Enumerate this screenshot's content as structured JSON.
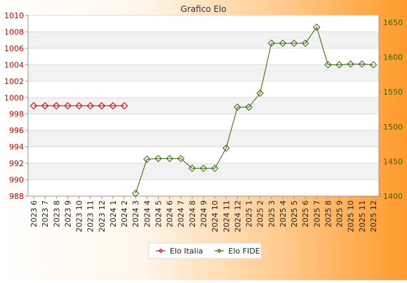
{
  "chart_data": {
    "type": "line",
    "title": "Grafico Elo",
    "categories": [
      "2023 6",
      "2023 7",
      "2023 8",
      "2023 9",
      "2023 10",
      "2023 11",
      "2023 12",
      "2024 1",
      "2024 2",
      "2024 3",
      "2024 4",
      "2024 5",
      "2024 6",
      "2024 7",
      "2024 8",
      "2024 9",
      "2024 10",
      "2024 11",
      "2024 12",
      "2025 1",
      "2025 2",
      "2025 3",
      "2025 4",
      "2025 5",
      "2025 6",
      "2025 7",
      "2025 8",
      "2025 9",
      "2025 10",
      "2025 11",
      "2025 12"
    ],
    "y_left": {
      "ylim": [
        988,
        1010
      ],
      "ticks": [
        988,
        990,
        992,
        994,
        996,
        998,
        1000,
        1002,
        1004,
        1006,
        1008,
        1010
      ],
      "color": "#cc0000"
    },
    "y_right": {
      "ylim": [
        1400,
        1660
      ],
      "ticks": [
        1400,
        1450,
        1500,
        1550,
        1600,
        1650
      ],
      "color": "#336600"
    },
    "grid": true,
    "legend_position": "bottom",
    "series": [
      {
        "name": "Elo Italia",
        "axis": "left",
        "color": "#cc0000",
        "values": [
          999,
          999,
          999,
          999,
          999,
          999,
          999,
          999,
          999,
          null,
          null,
          null,
          null,
          null,
          null,
          null,
          null,
          null,
          null,
          null,
          null,
          null,
          null,
          null,
          null,
          null,
          null,
          null,
          null,
          null,
          null
        ]
      },
      {
        "name": "Elo FIDE",
        "axis": "right",
        "color": "#336600",
        "values": [
          null,
          null,
          null,
          null,
          null,
          null,
          null,
          null,
          null,
          1404,
          1453,
          1454,
          1454,
          1454,
          1440,
          1440,
          1440,
          1469,
          1528,
          1528,
          1548,
          1620,
          1620,
          1620,
          1620,
          1643,
          1589,
          1589,
          1590,
          1590,
          1589
        ]
      }
    ]
  }
}
